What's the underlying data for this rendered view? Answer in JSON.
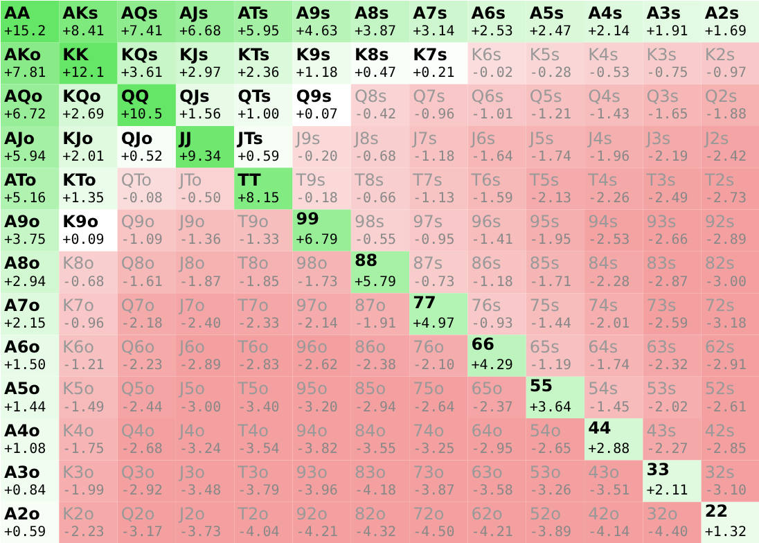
{
  "chart_data": {
    "type": "heatmap",
    "cell_labels": [
      [
        "+15.2",
        "+8.41",
        "+7.41",
        "+6.68",
        "+5.95",
        "+4.63",
        "+3.87",
        "+3.14",
        "+2.53",
        "+2.47",
        "+2.14",
        "+1.91",
        "+1.69"
      ],
      [
        "+7.81",
        "+12.1",
        "+3.61",
        "+2.97",
        "+2.36",
        "+1.18",
        "+0.47",
        "+0.21",
        "-0.02",
        "-0.28",
        "-0.53",
        "-0.75",
        "-0.97"
      ],
      [
        "+6.72",
        "+2.69",
        "+10.5",
        "+1.56",
        "+1.00",
        "+0.07",
        "-0.42",
        "-0.96",
        "-1.01",
        "-1.21",
        "-1.43",
        "-1.65",
        "-1.88"
      ],
      [
        "+5.94",
        "+2.01",
        "+0.52",
        "+9.34",
        "+0.59",
        "-0.20",
        "-0.68",
        "-1.18",
        "-1.64",
        "-1.74",
        "-1.96",
        "-2.19",
        "-2.42"
      ],
      [
        "+5.16",
        "+1.35",
        "-0.08",
        "-0.50",
        "+8.15",
        "-0.18",
        "-0.66",
        "-1.13",
        "-1.59",
        "-2.13",
        "-2.26",
        "-2.49",
        "-2.73"
      ],
      [
        "+3.75",
        "+0.09",
        "-1.09",
        "-1.36",
        "-1.33",
        "+6.79",
        "-0.55",
        "-0.95",
        "-1.41",
        "-1.95",
        "-2.53",
        "-2.66",
        "-2.89"
      ],
      [
        "+2.94",
        "-0.68",
        "-1.61",
        "-1.87",
        "-1.85",
        "-1.73",
        "+5.79",
        "-0.73",
        "-1.18",
        "-1.71",
        "-2.28",
        "-2.87",
        "-3.00"
      ],
      [
        "+2.15",
        "-0.96",
        "-2.18",
        "-2.40",
        "-2.33",
        "-2.14",
        "-1.91",
        "+4.97",
        "-0.93",
        "-1.44",
        "-2.01",
        "-2.59",
        "-3.18"
      ],
      [
        "+1.50",
        "-1.21",
        "-2.23",
        "-2.89",
        "-2.83",
        "-2.62",
        "-2.38",
        "-2.10",
        "+4.29",
        "-1.19",
        "-1.74",
        "-2.32",
        "-2.91"
      ],
      [
        "+1.44",
        "-1.49",
        "-2.44",
        "-3.00",
        "-3.40",
        "-3.20",
        "-2.94",
        "-2.64",
        "-2.37",
        "+3.64",
        "-1.45",
        "-2.02",
        "-2.61"
      ],
      [
        "+1.08",
        "-1.75",
        "-2.68",
        "-3.24",
        "-3.54",
        "-3.82",
        "-3.55",
        "-3.25",
        "-2.95",
        "-2.65",
        "+2.88",
        "-2.27",
        "-2.85"
      ],
      [
        "+0.84",
        "-1.99",
        "-2.92",
        "-3.48",
        "-3.79",
        "-3.96",
        "-4.18",
        "-3.87",
        "-3.58",
        "-3.26",
        "-3.51",
        "+2.11",
        "-3.10"
      ],
      [
        "+0.59",
        "-2.23",
        "-3.17",
        "-3.73",
        "-4.04",
        "-4.21",
        "-4.32",
        "-4.50",
        "-4.21",
        "-3.89",
        "-4.14",
        "-4.40",
        "+1.32"
      ]
    ],
    "categories": [
      null,
      null,
      null,
      null,
      null,
      null,
      null,
      null,
      null,
      null,
      null,
      null,
      null
    ],
    "y_categories": [
      null,
      null,
      null,
      null,
      null,
      null,
      null,
      null,
      null,
      null,
      null,
      null,
      null
    ],
    "cells": [
      [
        15.2,
        8.41,
        7.41,
        6.68,
        5.95,
        4.63,
        3.87,
        3.14,
        2.53,
        2.47,
        2.14,
        1.91,
        1.69
      ],
      [
        7.81,
        12.1,
        3.61,
        2.97,
        2.36,
        1.18,
        0.47,
        0.21,
        -0.02,
        -0.28,
        -0.53,
        -0.75,
        -0.97
      ],
      [
        6.72,
        2.69,
        10.5,
        1.56,
        1.0,
        0.07,
        -0.42,
        -0.96,
        -1.01,
        -1.21,
        -1.43,
        -1.65,
        -1.88
      ],
      [
        5.94,
        2.01,
        0.52,
        9.34,
        0.59,
        -0.2,
        -0.68,
        -1.18,
        -1.64,
        -1.74,
        -1.96,
        -2.19,
        -2.42
      ],
      [
        5.16,
        1.35,
        -0.08,
        -0.5,
        8.15,
        -0.18,
        -0.66,
        -1.13,
        -1.59,
        -2.13,
        -2.26,
        -2.49,
        -2.73
      ],
      [
        3.75,
        0.09,
        -1.09,
        -1.36,
        -1.33,
        6.79,
        -0.55,
        -0.95,
        -1.41,
        -1.95,
        -2.53,
        -2.66,
        -2.89
      ],
      [
        2.94,
        -0.68,
        -1.61,
        -1.87,
        -1.85,
        -1.73,
        5.79,
        -0.73,
        -1.18,
        -1.71,
        -2.28,
        -2.87,
        -3.0
      ],
      [
        2.15,
        -0.96,
        -2.18,
        -2.4,
        -2.33,
        -2.14,
        -1.91,
        4.97,
        -0.93,
        -1.44,
        -2.01,
        -2.59,
        -3.18
      ],
      [
        1.5,
        -1.21,
        -2.23,
        -2.89,
        -2.83,
        -2.62,
        -2.38,
        -2.1,
        4.29,
        -1.19,
        -1.74,
        -2.32,
        -2.91
      ],
      [
        1.44,
        -1.49,
        -2.44,
        -3.0,
        -3.4,
        -3.2,
        -2.94,
        -2.64,
        -2.37,
        3.64,
        -1.45,
        -2.02,
        -2.61
      ],
      [
        1.08,
        -1.75,
        -2.68,
        -3.24,
        -3.54,
        -3.82,
        -3.55,
        -3.25,
        -2.95,
        -2.65,
        2.88,
        -2.27,
        -2.85
      ],
      [
        0.84,
        -1.99,
        -2.92,
        -3.48,
        -3.79,
        -3.96,
        -4.18,
        -3.87,
        -3.58,
        -3.26,
        -3.51,
        2.11,
        -3.1
      ],
      [
        0.59,
        -2.23,
        -3.17,
        -3.73,
        -4.04,
        -4.21,
        -4.32,
        -4.5,
        -4.21,
        -3.89,
        -4.14,
        -4.4,
        1.32
      ]
    ],
    "annotations": [
      "AA",
      "AKs",
      "AQs",
      "AJs",
      "ATs",
      "A9s",
      "A8s",
      "A7s",
      "A6s",
      "A5s",
      "A4s",
      "A3s",
      "A2s",
      "AKo",
      "KK",
      "KQs",
      "KJs",
      "KTs",
      "K9s",
      "K8s",
      "K7s",
      "K6s",
      "K5s",
      "K4s",
      "K3s",
      "K2s",
      "AQo",
      "KQo",
      "QQ",
      "QJs",
      "QTs",
      "Q9s",
      "Q8s",
      "Q7s",
      "Q6s",
      "Q5s",
      "Q4s",
      "Q3s",
      "Q2s",
      "AJo",
      "KJo",
      "QJo",
      "JJ",
      "JTs",
      "J9s",
      "J8s",
      "J7s",
      "J6s",
      "J5s",
      "J4s",
      "J3s",
      "J2s",
      "ATo",
      "KTo",
      "QTo",
      "JTo",
      "TT",
      "T9s",
      "T8s",
      "T7s",
      "T6s",
      "T5s",
      "T4s",
      "T3s",
      "T2s",
      "A9o",
      "K9o",
      "Q9o",
      "J9o",
      "T9o",
      "99",
      "98s",
      "97s",
      "96s",
      "95s",
      "94s",
      "93s",
      "92s",
      "A8o",
      "K8o",
      "Q8o",
      "J8o",
      "T8o",
      "98o",
      "88",
      "87s",
      "86s",
      "85s",
      "84s",
      "83s",
      "82s",
      "A7o",
      "K7o",
      "Q7o",
      "J7o",
      "T7o",
      "97o",
      "87o",
      "77",
      "76s",
      "75s",
      "74s",
      "73s",
      "72s",
      "A6o",
      "K6o",
      "Q6o",
      "J6o",
      "T6o",
      "96o",
      "86o",
      "76o",
      "66",
      "65s",
      "64s",
      "63s",
      "62s",
      "A5o",
      "K5o",
      "Q5o",
      "J5o",
      "T5o",
      "95o",
      "85o",
      "75o",
      "65o",
      "55",
      "54s",
      "53s",
      "52s",
      "A4o",
      "K4o",
      "Q4o",
      "J4o",
      "T4o",
      "94o",
      "84o",
      "74o",
      "64o",
      "54o",
      "44",
      "43s",
      "42s",
      "A3o",
      "K3o",
      "Q3o",
      "J3o",
      "T3o",
      "93o",
      "83o",
      "73o",
      "63o",
      "53o",
      "43o",
      "33",
      "32s",
      "A2o",
      "K2o",
      "Q2o",
      "J2o",
      "T2o",
      "92o",
      "82o",
      "72o",
      "62o",
      "52o",
      "42o",
      "32o",
      "22"
    ]
  }
}
